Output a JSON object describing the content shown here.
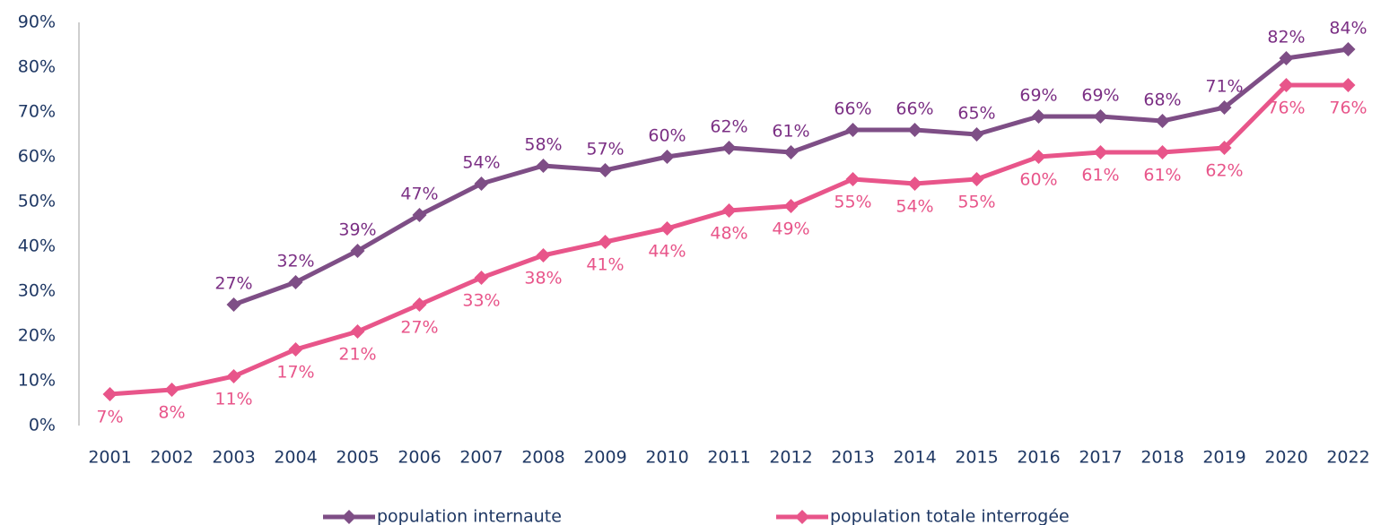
{
  "chart_data": {
    "type": "line",
    "categories": [
      "2001",
      "2002",
      "2003",
      "2004",
      "2005",
      "2006",
      "2007",
      "2008",
      "2009",
      "2010",
      "2011",
      "2012",
      "2013",
      "2014",
      "2015",
      "2016",
      "2017",
      "2018",
      "2019",
      "2020",
      "2022"
    ],
    "series": [
      {
        "name": "population internaute",
        "color": "#7e4e86",
        "label_color": "#7b2f84",
        "label_position": "above",
        "values": [
          null,
          null,
          27,
          32,
          39,
          47,
          54,
          58,
          57,
          60,
          62,
          61,
          66,
          66,
          65,
          69,
          69,
          68,
          71,
          82,
          84
        ],
        "value_labels": [
          null,
          null,
          "27%",
          "32%",
          "39%",
          "47%",
          "54%",
          "58%",
          "57%",
          "60%",
          "62%",
          "61%",
          "66%",
          "66%",
          "65%",
          "69%",
          "69%",
          "68%",
          "71%",
          "82%",
          "84%"
        ]
      },
      {
        "name": "population totale interrogée",
        "color": "#e8558a",
        "label_color": "#e8558a",
        "label_position": "below",
        "values": [
          7,
          8,
          11,
          17,
          21,
          27,
          33,
          38,
          41,
          44,
          48,
          49,
          55,
          54,
          55,
          60,
          61,
          61,
          62,
          76,
          76
        ],
        "value_labels": [
          "7%",
          "8%",
          "11%",
          "17%",
          "21%",
          "27%",
          "33%",
          "38%",
          "41%",
          "44%",
          "48%",
          "49%",
          "55%",
          "54%",
          "55%",
          "60%",
          "61%",
          "61%",
          "62%",
          "76%",
          "76%"
        ]
      }
    ],
    "ylim": [
      0,
      90
    ],
    "yticks": [
      {
        "value": 0,
        "label": "0%"
      },
      {
        "value": 10,
        "label": "10%"
      },
      {
        "value": 20,
        "label": "20%"
      },
      {
        "value": 30,
        "label": "30%"
      },
      {
        "value": 40,
        "label": "40%"
      },
      {
        "value": 50,
        "label": "50%"
      },
      {
        "value": 60,
        "label": "60%"
      },
      {
        "value": 70,
        "label": "70%"
      },
      {
        "value": 80,
        "label": "80%"
      },
      {
        "value": 90,
        "label": "90%"
      }
    ],
    "grid": false,
    "legend": "bottom"
  }
}
